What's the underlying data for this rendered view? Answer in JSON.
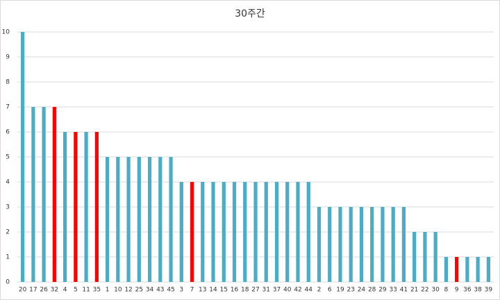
{
  "chart_data": {
    "type": "bar",
    "title": "30주간",
    "categories": [
      "20",
      "17",
      "26",
      "32",
      "4",
      "5",
      "11",
      "35",
      "1",
      "10",
      "12",
      "25",
      "34",
      "43",
      "45",
      "3",
      "7",
      "13",
      "14",
      "15",
      "16",
      "18",
      "27",
      "31",
      "37",
      "40",
      "42",
      "44",
      "2",
      "6",
      "19",
      "23",
      "24",
      "28",
      "29",
      "33",
      "41",
      "21",
      "22",
      "30",
      "8",
      "9",
      "36",
      "38",
      "39"
    ],
    "values": [
      10,
      7,
      7,
      7,
      6,
      6,
      6,
      6,
      5,
      5,
      5,
      5,
      5,
      5,
      5,
      4,
      4,
      4,
      4,
      4,
      4,
      4,
      4,
      4,
      4,
      4,
      4,
      4,
      3,
      3,
      3,
      3,
      3,
      3,
      3,
      3,
      3,
      2,
      2,
      2,
      1,
      1,
      1,
      1,
      1
    ],
    "colors": [
      "#4bacc6",
      "#4bacc6",
      "#4bacc6",
      "#ff0000",
      "#4bacc6",
      "#ff0000",
      "#4bacc6",
      "#ff0000",
      "#4bacc6",
      "#4bacc6",
      "#4bacc6",
      "#4bacc6",
      "#4bacc6",
      "#4bacc6",
      "#4bacc6",
      "#4bacc6",
      "#ff0000",
      "#4bacc6",
      "#4bacc6",
      "#4bacc6",
      "#4bacc6",
      "#4bacc6",
      "#4bacc6",
      "#4bacc6",
      "#4bacc6",
      "#4bacc6",
      "#4bacc6",
      "#4bacc6",
      "#4bacc6",
      "#4bacc6",
      "#4bacc6",
      "#4bacc6",
      "#4bacc6",
      "#4bacc6",
      "#4bacc6",
      "#4bacc6",
      "#4bacc6",
      "#4bacc6",
      "#4bacc6",
      "#4bacc6",
      "#4bacc6",
      "#ff0000",
      "#4bacc6",
      "#4bacc6",
      "#4bacc6"
    ],
    "ylim": [
      0,
      10
    ],
    "yticks": [
      0,
      1,
      2,
      3,
      4,
      5,
      6,
      7,
      8,
      9,
      10
    ],
    "grid": true
  }
}
